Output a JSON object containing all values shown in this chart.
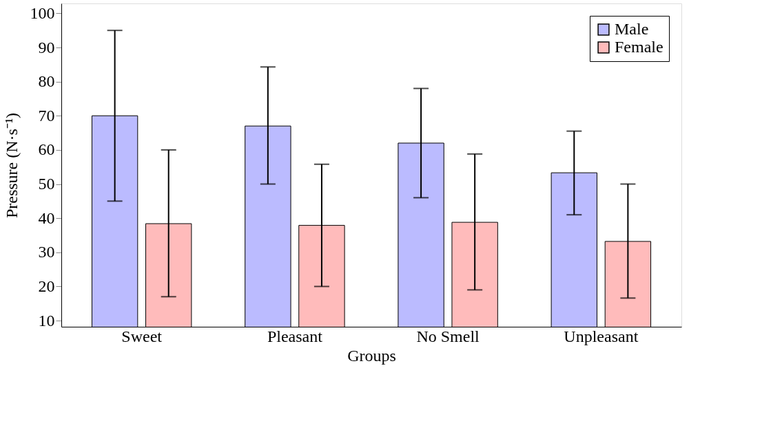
{
  "chart_data": {
    "type": "bar",
    "xlabel": "Groups",
    "ylabel": "Pressure (N·s⁻¹)",
    "categories": [
      "Sweet",
      "Pleasant",
      "No Smell",
      "Unpleasant"
    ],
    "series": [
      {
        "name": "Male",
        "color": "#bbbbff",
        "values": [
          70,
          67,
          62,
          53.3
        ],
        "errors": [
          [
            45,
            95
          ],
          [
            50,
            84.3
          ],
          [
            46,
            78
          ],
          [
            41,
            65.5
          ]
        ]
      },
      {
        "name": "Female",
        "color": "#ffbbbb",
        "values": [
          38.4,
          37.9,
          38.8,
          33.2
        ],
        "errors": [
          [
            17,
            60
          ],
          [
            20,
            55.8
          ],
          [
            19,
            58.8
          ],
          [
            16.6,
            50
          ]
        ]
      }
    ],
    "ylim": [
      8.2,
      102.9
    ],
    "yticks": [
      10,
      20,
      30,
      40,
      50,
      60,
      70,
      80,
      90,
      100
    ],
    "grid": false,
    "legend": "top right"
  }
}
